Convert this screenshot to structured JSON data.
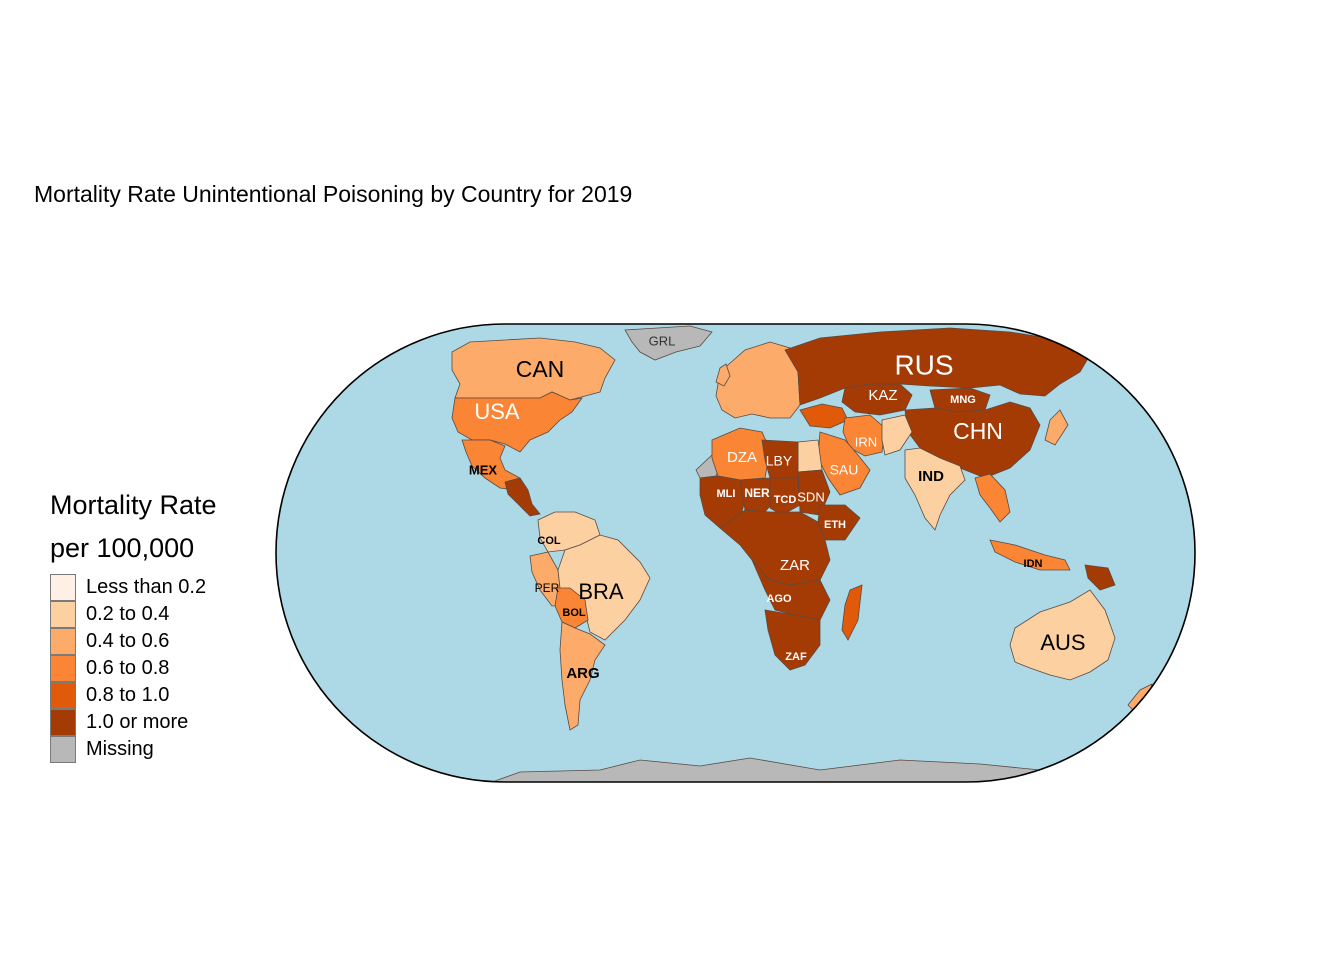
{
  "title": "Mortality Rate Unintentional Poisoning by Country for 2019",
  "legend": {
    "title_line1": "Mortality Rate",
    "title_line2": "per 100,000",
    "items": [
      {
        "label": "Less than 0.2",
        "color": "#fef0e4"
      },
      {
        "label": "0.2 to 0.4",
        "color": "#fdd0a2"
      },
      {
        "label": "0.4 to 0.6",
        "color": "#fdab6b"
      },
      {
        "label": "0.6 to 0.8",
        "color": "#f98535"
      },
      {
        "label": "0.8 to 1.0",
        "color": "#e05a0a"
      },
      {
        "label": "1.0 or more",
        "color": "#a43b04"
      },
      {
        "label": "Missing",
        "color": "#b8b8b8"
      }
    ]
  },
  "colors": {
    "ocean": "#add8e6",
    "frame": "#000000"
  },
  "country_labels": [
    {
      "code": "GRL",
      "category": "Missing"
    },
    {
      "code": "CAN",
      "category": "0.4 to 0.6"
    },
    {
      "code": "USA",
      "category": "0.6 to 0.8"
    },
    {
      "code": "MEX",
      "category": "0.6 to 0.8"
    },
    {
      "code": "COL",
      "category": "0.2 to 0.4"
    },
    {
      "code": "PER",
      "category": "0.4 to 0.6"
    },
    {
      "code": "BRA",
      "category": "0.2 to 0.4"
    },
    {
      "code": "BOL",
      "category": "0.6 to 0.8"
    },
    {
      "code": "ARG",
      "category": "0.4 to 0.6"
    },
    {
      "code": "RUS",
      "category": "1.0 or more"
    },
    {
      "code": "KAZ",
      "category": "1.0 or more"
    },
    {
      "code": "MNG",
      "category": "1.0 or more"
    },
    {
      "code": "CHN",
      "category": "1.0 or more"
    },
    {
      "code": "IRN",
      "category": "0.6 to 0.8"
    },
    {
      "code": "IND",
      "category": "0.2 to 0.4"
    },
    {
      "code": "SAU",
      "category": "0.6 to 0.8"
    },
    {
      "code": "DZA",
      "category": "0.6 to 0.8"
    },
    {
      "code": "LBY",
      "category": "1.0 or more"
    },
    {
      "code": "MLI",
      "category": "1.0 or more"
    },
    {
      "code": "NER",
      "category": "1.0 or more"
    },
    {
      "code": "TCD",
      "category": "1.0 or more"
    },
    {
      "code": "SDN",
      "category": "1.0 or more"
    },
    {
      "code": "ETH",
      "category": "1.0 or more"
    },
    {
      "code": "ZAR",
      "category": "1.0 or more"
    },
    {
      "code": "AGO",
      "category": "1.0 or more"
    },
    {
      "code": "ZAF",
      "category": "1.0 or more"
    },
    {
      "code": "IDN",
      "category": "0.6 to 0.8"
    },
    {
      "code": "AUS",
      "category": "0.2 to 0.4"
    }
  ]
}
